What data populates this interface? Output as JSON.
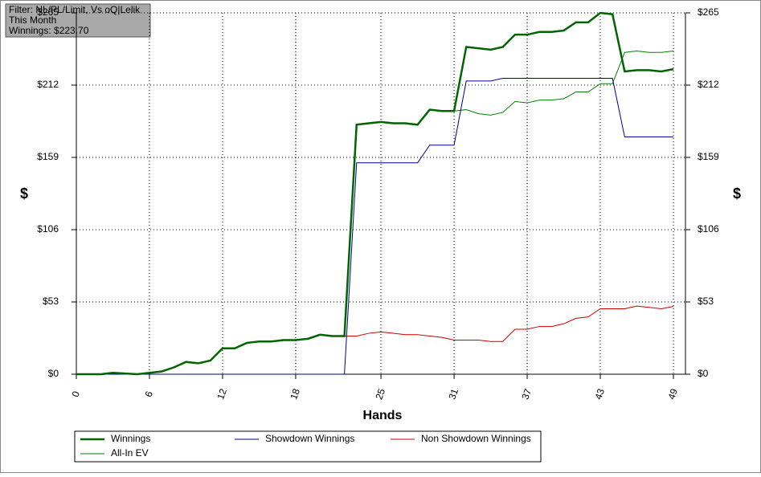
{
  "chart_data": {
    "type": "line",
    "annotations": [
      "Filter: NL/PL/Limit, Vs oQ|Lelik",
      "This Month",
      "Winnings: $223.70"
    ],
    "xlabel": "Hands",
    "ylabel": "$",
    "x": [
      0,
      1,
      2,
      3,
      4,
      5,
      6,
      7,
      8,
      9,
      10,
      11,
      12,
      13,
      14,
      15,
      16,
      17,
      18,
      19,
      20,
      21,
      22,
      23,
      24,
      25,
      26,
      27,
      28,
      29,
      30,
      31,
      32,
      33,
      34,
      35,
      36,
      37,
      38,
      39,
      40,
      41,
      42,
      43,
      44,
      45,
      46,
      47,
      48,
      49
    ],
    "xlim": [
      0,
      49
    ],
    "xticks": [
      0,
      6,
      12,
      18,
      25,
      31,
      37,
      43,
      49
    ],
    "ylim": [
      0,
      265
    ],
    "yticks": [
      {
        "value": 0,
        "label": "$0"
      },
      {
        "value": 53,
        "label": "$53"
      },
      {
        "value": 106,
        "label": "$106"
      },
      {
        "value": 159,
        "label": "$159"
      },
      {
        "value": 212,
        "label": "$212"
      },
      {
        "value": 265,
        "label": "$265"
      }
    ],
    "grid": true,
    "series": [
      {
        "name": "Winnings",
        "color": "#006400",
        "values": [
          0,
          0,
          0,
          1,
          0.5,
          0,
          1,
          2,
          5,
          9,
          8,
          10,
          19,
          19,
          23,
          24,
          24,
          25,
          25,
          26,
          29,
          28,
          28,
          183,
          184,
          185,
          184,
          184,
          183,
          194,
          193,
          193,
          240,
          239,
          238,
          240,
          249,
          249,
          251,
          251,
          252,
          258,
          258,
          265,
          264,
          222,
          223,
          223,
          222,
          223.7
        ]
      },
      {
        "name": "Showdown Winnings",
        "color": "#00008b",
        "values": [
          0,
          0,
          0,
          0,
          0,
          0,
          0,
          0,
          0,
          0,
          0,
          0,
          0,
          0,
          0,
          0,
          0,
          0,
          0,
          0,
          0,
          0,
          0,
          155,
          155,
          155,
          155,
          155,
          155,
          168,
          168,
          168,
          215,
          215,
          215,
          217,
          217,
          217,
          217,
          217,
          217,
          217,
          217,
          217,
          217,
          174,
          174,
          174,
          174,
          174
        ]
      },
      {
        "name": "Non Showdown Winnings",
        "color": "#cc0000",
        "values": [
          0,
          0,
          0,
          1,
          0.5,
          0,
          1,
          2,
          5,
          9,
          8,
          10,
          19,
          19,
          23,
          24,
          24,
          25,
          25,
          26,
          29,
          28,
          28,
          28,
          30,
          31,
          30,
          29,
          29,
          28,
          27,
          25,
          25,
          25,
          24,
          24,
          33,
          33,
          35,
          35,
          37,
          41,
          42,
          48,
          48,
          48,
          50,
          49,
          48,
          49.7
        ]
      },
      {
        "name": "All-In EV",
        "color": "#008000",
        "values": [
          0,
          0,
          0,
          1,
          0.5,
          0,
          1,
          2,
          5,
          9,
          8,
          10,
          19,
          19,
          23,
          24,
          24,
          25,
          25,
          26,
          29,
          28,
          28,
          183,
          184,
          185,
          184,
          184,
          183,
          194,
          193,
          193,
          194,
          191,
          190,
          192,
          200,
          199,
          201,
          201,
          202,
          207,
          207,
          213,
          213,
          236,
          237,
          236,
          236,
          237
        ]
      }
    ]
  }
}
